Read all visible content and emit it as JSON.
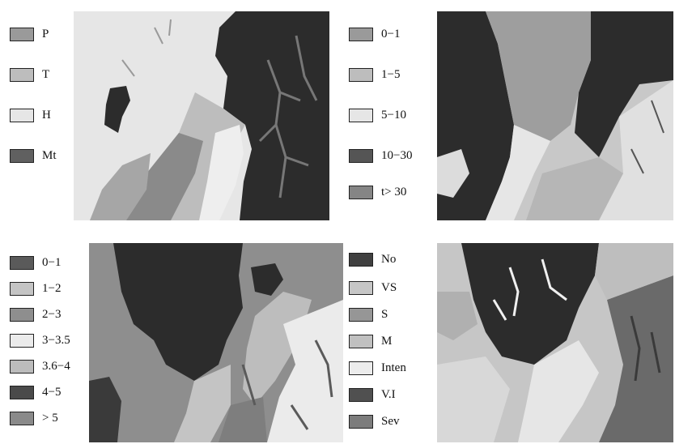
{
  "colors": {
    "P": "#9a9a9a",
    "T": "#bdbdbd",
    "H": "#e6e6e6",
    "Mt": "#606060",
    "dark": "#2c2c2c"
  },
  "panels": [
    {
      "id": "slope-class",
      "legend": [
        {
          "label": "P",
          "color": "#9a9a9a"
        },
        {
          "label": "T",
          "color": "#bdbdbd"
        },
        {
          "label": "H",
          "color": "#e6e6e6"
        },
        {
          "label": "Mt",
          "color": "#606060"
        }
      ]
    },
    {
      "id": "slope-range",
      "legend": [
        {
          "label": "0−1",
          "color": "#9a9a9a"
        },
        {
          "label": "1−5",
          "color": "#bdbdbd"
        },
        {
          "label": "5−10",
          "color": "#e6e6e6"
        },
        {
          "label": "10−30",
          "color": "#555555"
        },
        {
          "label": "t> 30",
          "color": "#858585"
        }
      ]
    },
    {
      "id": "depth-range",
      "legend": [
        {
          "label": "0−1",
          "color": "#5a5a5a"
        },
        {
          "label": "1−2",
          "color": "#c4c4c4"
        },
        {
          "label": "2−3",
          "color": "#8e8e8e"
        },
        {
          "label": "3−3.5",
          "color": "#ebebeb"
        },
        {
          "label": "3.6−4",
          "color": "#bcbcbc"
        },
        {
          "label": "4−5",
          "color": "#4a4a4a"
        },
        {
          "label": "> 5",
          "color": "#8a8a8a"
        }
      ]
    },
    {
      "id": "erosion-class",
      "legend": [
        {
          "label": "No",
          "color": "#404040"
        },
        {
          "label": "VS",
          "color": "#c6c6c6"
        },
        {
          "label": "S",
          "color": "#969696"
        },
        {
          "label": "M",
          "color": "#c0c0c0"
        },
        {
          "label": "Inten",
          "color": "#ececec"
        },
        {
          "label": "V.I",
          "color": "#505050"
        },
        {
          "label": "Sev",
          "color": "#7c7c7c"
        }
      ]
    }
  ]
}
